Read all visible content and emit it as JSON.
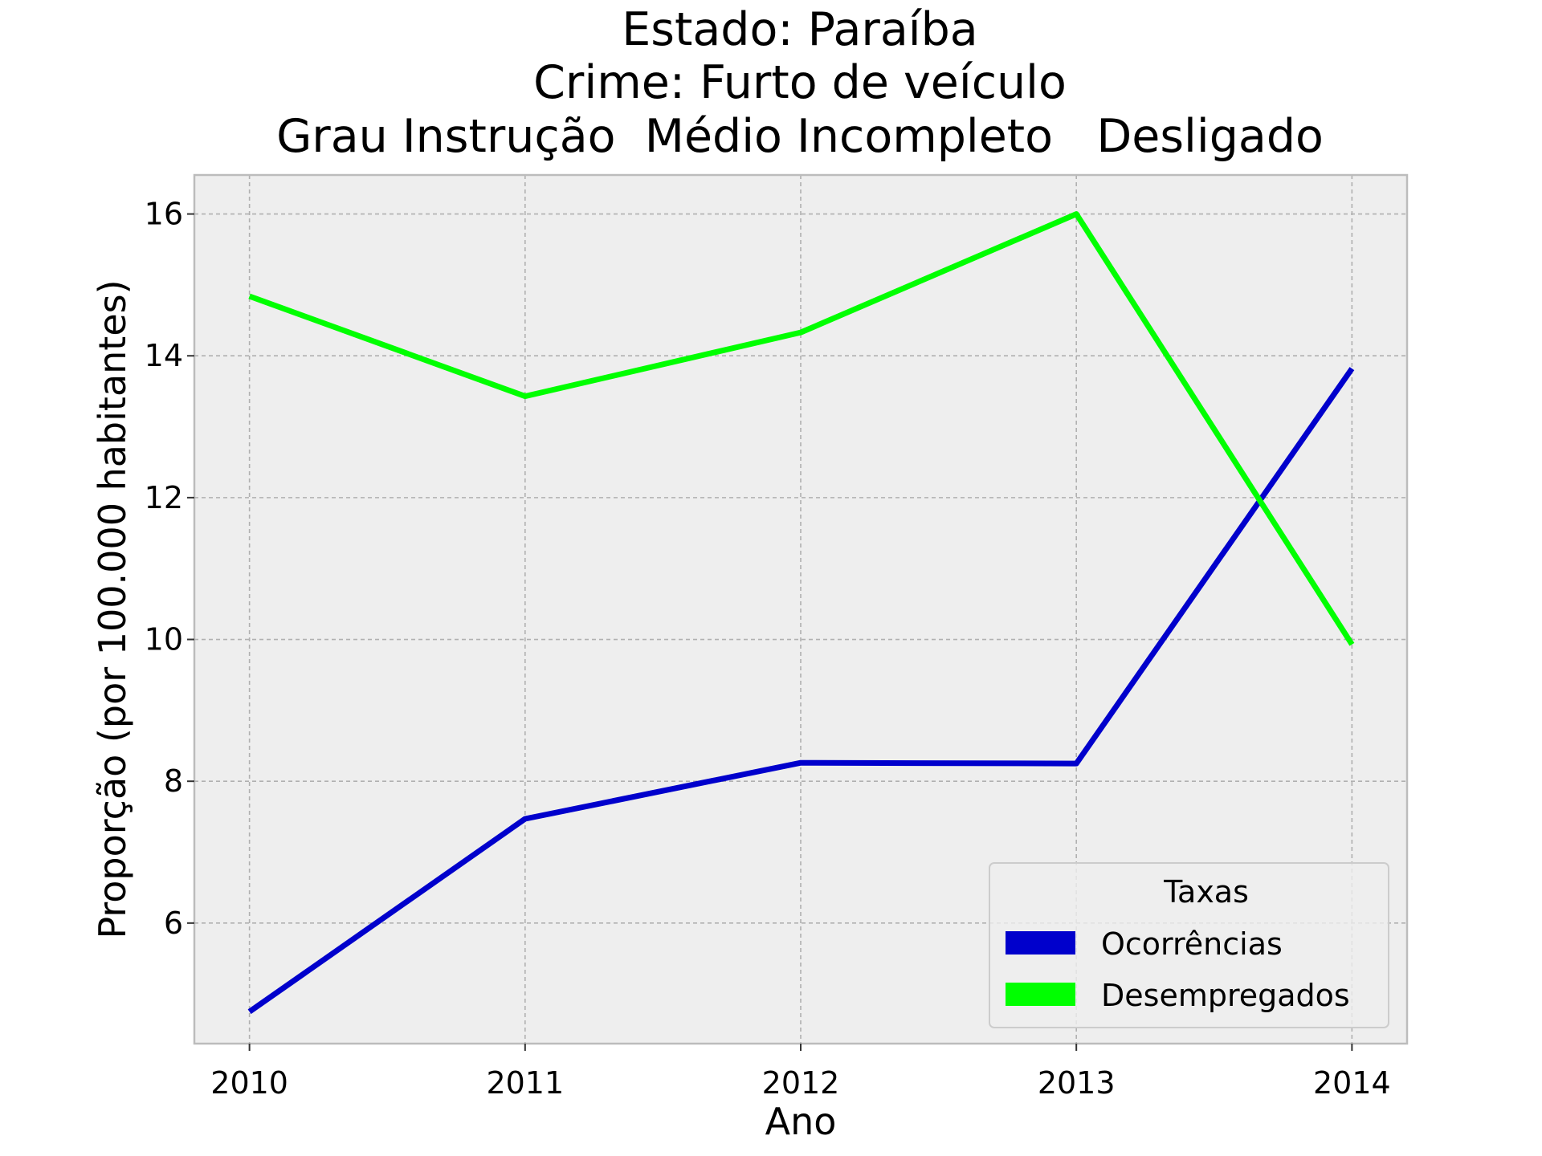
{
  "chart_data": {
    "type": "line",
    "title": [
      "Estado: Paraíba",
      "Crime: Furto de veículo",
      "Grau Instrução  Médio Incompleto   Desligado"
    ],
    "xlabel": "Ano",
    "ylabel": "Proporção (por 100.000 habitantes)",
    "x": [
      2010,
      2011,
      2012,
      2013,
      2014
    ],
    "x_tick_labels": [
      "2010",
      "2011",
      "2012",
      "2013",
      "2014"
    ],
    "y_ticks": [
      6,
      8,
      10,
      12,
      14,
      16
    ],
    "y_tick_labels": [
      "6",
      "8",
      "10",
      "12",
      "14",
      "16"
    ],
    "xlim": [
      2009.8,
      2014.2
    ],
    "ylim": [
      4.3,
      16.55
    ],
    "grid": true,
    "legend": {
      "title": "Taxas",
      "placement": "bottom-right"
    },
    "series": [
      {
        "name": "Ocorrências",
        "color": "#0000cc",
        "values": [
          4.75,
          7.47,
          8.26,
          8.25,
          13.82
        ]
      },
      {
        "name": "Desempregados",
        "color": "#00ff00",
        "values": [
          14.84,
          13.43,
          14.33,
          16.0,
          9.93
        ]
      }
    ]
  },
  "colors": {
    "background": "#ffffff",
    "plot_area": "#eeeeee",
    "grid": "#b0b0b0",
    "spine": "#bcbcbc"
  }
}
